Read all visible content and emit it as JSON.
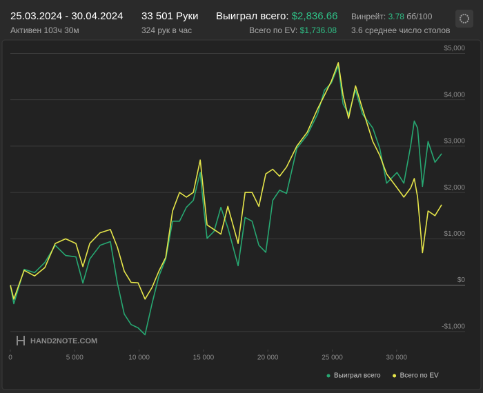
{
  "header": {
    "dates": "25.03.2024 - 30.04.2024",
    "active": "Активен 103ч 30м",
    "hands": "33 501 Руки",
    "rate": "324 рук в час",
    "won_label": "Выиграл всего:",
    "won_value": "$2,836.66",
    "ev_label": "Всего по EV:",
    "ev_value": "$1,736.08",
    "winrate_label": "Винрейт:",
    "winrate_value": "3.78",
    "winrate_unit": "бб/100",
    "tables": "3.6 среднее число столов"
  },
  "watermark": "HAND2NOTE.COM",
  "chart_data": {
    "type": "line",
    "x": [
      0,
      270,
      1070,
      1880,
      2680,
      3490,
      4290,
      5090,
      5630,
      6170,
      6970,
      7770,
      8310,
      8850,
      9380,
      9920,
      10460,
      11000,
      11530,
      12070,
      12600,
      13140,
      13670,
      14210,
      14750,
      15010,
      15280,
      15820,
      16350,
      16890,
      17690,
      18230,
      18770,
      19300,
      19840,
      20380,
      20910,
      21450,
      22250,
      23060,
      23860,
      24400,
      24930,
      25470,
      25840,
      26270,
      26810,
      27350,
      28150,
      28690,
      29220,
      30030,
      30560,
      31100,
      31370,
      31630,
      32010,
      32440,
      32980,
      33500
    ],
    "series": [
      {
        "name": "Выиграл всего",
        "color": "#27a872",
        "values": [
          0,
          -400,
          340,
          270,
          490,
          860,
          640,
          610,
          45,
          565,
          860,
          940,
          45,
          -625,
          -850,
          -920,
          -1070,
          -400,
          190,
          565,
          1380,
          1380,
          1680,
          1830,
          2430,
          1680,
          1010,
          1160,
          1680,
          1240,
          420,
          1460,
          1380,
          860,
          710,
          1830,
          2050,
          1980,
          2950,
          3240,
          3690,
          4210,
          4360,
          4730,
          3910,
          3690,
          4210,
          3690,
          3390,
          2950,
          2200,
          2430,
          2200,
          3020,
          3540,
          3390,
          2130,
          3100,
          2650,
          2837
        ]
      },
      {
        "name": "Всего по EV",
        "color": "#e6e64a",
        "values": [
          0,
          -300,
          320,
          200,
          380,
          900,
          1000,
          900,
          400,
          900,
          1130,
          1200,
          820,
          300,
          60,
          50,
          -300,
          -50,
          300,
          600,
          1600,
          2000,
          1900,
          2000,
          2700,
          2000,
          1300,
          1200,
          1100,
          1700,
          900,
          2000,
          2000,
          1700,
          2400,
          2500,
          2350,
          2550,
          3000,
          3300,
          3800,
          4100,
          4400,
          4800,
          4100,
          3600,
          4300,
          3800,
          3100,
          2800,
          2400,
          2100,
          1900,
          2100,
          2300,
          1900,
          700,
          1600,
          1500,
          1736
        ]
      }
    ],
    "xlim": [
      0,
      33600
    ],
    "xticks": [
      0,
      {
        "value": 5000,
        "label": "5 000"
      },
      {
        "value": 10000,
        "label": "10 000"
      },
      {
        "value": 15000,
        "label": "15 000"
      },
      {
        "value": 20000,
        "label": "20 000"
      },
      {
        "value": 25000,
        "label": "25 000"
      },
      {
        "value": 30000,
        "label": "30 000"
      }
    ],
    "ylim": [
      -1300,
      5200
    ],
    "yticks": [
      {
        "value": -1000,
        "label": "-$1,000"
      },
      {
        "value": 0,
        "label": "$0"
      },
      {
        "value": 1000,
        "label": "$1,000"
      },
      {
        "value": 2000,
        "label": "$2,000"
      },
      {
        "value": 3000,
        "label": "$3,000"
      },
      {
        "value": 4000,
        "label": "$4,000"
      },
      {
        "value": 5000,
        "label": "$5,000"
      }
    ],
    "grid": true,
    "legend": "bottom-right"
  }
}
